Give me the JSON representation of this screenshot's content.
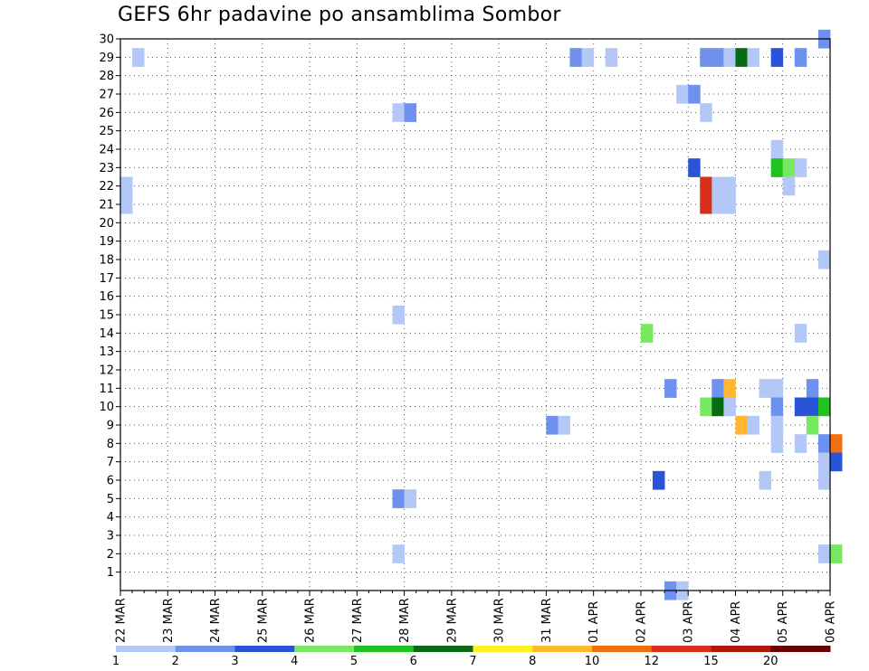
{
  "chart_data": {
    "type": "heatmap",
    "title": "GEFS 6hr padavine po ansamblima Sombor",
    "xlabel": "",
    "ylabel": "",
    "x_ticks": [
      "22 MAR",
      "23 MAR",
      "24 MAR",
      "25 MAR",
      "26 MAR",
      "27 MAR",
      "28 MAR",
      "29 MAR",
      "30 MAR",
      "31 MAR",
      "01 APR",
      "02 APR",
      "03 APR",
      "04 APR",
      "05 APR",
      "06 APR"
    ],
    "y_ticks": [
      "1",
      "2",
      "3",
      "4",
      "5",
      "6",
      "7",
      "8",
      "9",
      "10",
      "11",
      "12",
      "13",
      "14",
      "15",
      "16",
      "17",
      "18",
      "19",
      "20",
      "21",
      "22",
      "23",
      "24",
      "25",
      "26",
      "27",
      "28",
      "29",
      "30"
    ],
    "y_range": [
      0,
      30
    ],
    "x_range_days": [
      0,
      15
    ],
    "time_step": "6hr",
    "grid": "dotted",
    "colorbar": {
      "position": "bottom",
      "labels": [
        "1",
        "2",
        "3",
        "4",
        "5",
        "6",
        "7",
        "8",
        "10",
        "12",
        "15",
        "20"
      ],
      "colors": [
        "#b4c8f8",
        "#6e90ee",
        "#2a54d8",
        "#78e860",
        "#20c420",
        "#0a6a14",
        "#fff020",
        "#ffb830",
        "#f07010",
        "#d83018",
        "#b01808",
        "#6a0000"
      ]
    },
    "cells": [
      {
        "member": 29,
        "step": 1,
        "value": 1.5
      },
      {
        "member": 29,
        "step": 38,
        "value": 2.5
      },
      {
        "member": 29,
        "step": 39,
        "value": 1.5
      },
      {
        "member": 29,
        "step": 41,
        "value": 1.5
      },
      {
        "member": 29,
        "step": 49,
        "value": 2.5
      },
      {
        "member": 29,
        "step": 50,
        "value": 2.5
      },
      {
        "member": 29,
        "step": 51,
        "value": 1.5
      },
      {
        "member": 29,
        "step": 52,
        "value": 6.5
      },
      {
        "member": 29,
        "step": 53,
        "value": 1.5
      },
      {
        "member": 29,
        "step": 55,
        "value": 3.5
      },
      {
        "member": 29,
        "step": 57,
        "value": 2.5
      },
      {
        "member": 30,
        "step": 59,
        "value": 2.5
      },
      {
        "member": 27,
        "step": 47,
        "value": 1.5
      },
      {
        "member": 27,
        "step": 48,
        "value": 2.5
      },
      {
        "member": 26,
        "step": 23,
        "value": 1.5
      },
      {
        "member": 26,
        "step": 24,
        "value": 2.5
      },
      {
        "member": 26,
        "step": 49,
        "value": 1.5
      },
      {
        "member": 24,
        "step": 55,
        "value": 1.5
      },
      {
        "member": 23,
        "step": 48,
        "value": 3.5
      },
      {
        "member": 23,
        "step": 55,
        "value": 5.5
      },
      {
        "member": 23,
        "step": 56,
        "value": 4.5
      },
      {
        "member": 23,
        "step": 57,
        "value": 1.5
      },
      {
        "member": 22,
        "step": 0,
        "value": 1.5
      },
      {
        "member": 22,
        "step": 49,
        "value": 13.5
      },
      {
        "member": 22,
        "step": 50,
        "value": 1.5
      },
      {
        "member": 22,
        "step": 51,
        "value": 1.5
      },
      {
        "member": 22,
        "step": 56,
        "value": 1.5
      },
      {
        "member": 21,
        "step": 0,
        "value": 1.5
      },
      {
        "member": 21,
        "step": 49,
        "value": 13.5
      },
      {
        "member": 21,
        "step": 50,
        "value": 1.5
      },
      {
        "member": 21,
        "step": 51,
        "value": 1.5
      },
      {
        "member": 18,
        "step": 59,
        "value": 1.5
      },
      {
        "member": 15,
        "step": 23,
        "value": 1.5
      },
      {
        "member": 14,
        "step": 44,
        "value": 4.5
      },
      {
        "member": 14,
        "step": 57,
        "value": 1.5
      },
      {
        "member": 11,
        "step": 46,
        "value": 2.5
      },
      {
        "member": 11,
        "step": 50,
        "value": 2.5
      },
      {
        "member": 11,
        "step": 51,
        "value": 9
      },
      {
        "member": 11,
        "step": 54,
        "value": 1.5
      },
      {
        "member": 11,
        "step": 55,
        "value": 1.5
      },
      {
        "member": 11,
        "step": 58,
        "value": 2.5
      },
      {
        "member": 10,
        "step": 49,
        "value": 4.5
      },
      {
        "member": 10,
        "step": 50,
        "value": 6.5
      },
      {
        "member": 10,
        "step": 51,
        "value": 1.5
      },
      {
        "member": 10,
        "step": 55,
        "value": 2.5
      },
      {
        "member": 10,
        "step": 57,
        "value": 3.5
      },
      {
        "member": 10,
        "step": 58,
        "value": 3.5
      },
      {
        "member": 10,
        "step": 59,
        "value": 5.5
      },
      {
        "member": 9,
        "step": 36,
        "value": 2.5
      },
      {
        "member": 9,
        "step": 37,
        "value": 1.5
      },
      {
        "member": 9,
        "step": 52,
        "value": 9
      },
      {
        "member": 9,
        "step": 53,
        "value": 1.5
      },
      {
        "member": 9,
        "step": 55,
        "value": 1.5
      },
      {
        "member": 9,
        "step": 58,
        "value": 4.5
      },
      {
        "member": 8,
        "step": 55,
        "value": 1.5
      },
      {
        "member": 8,
        "step": 57,
        "value": 1.5
      },
      {
        "member": 8,
        "step": 59,
        "value": 2.5
      },
      {
        "member": 8,
        "step": 60,
        "value": 11
      },
      {
        "member": 7,
        "step": 59,
        "value": 1.5
      },
      {
        "member": 7,
        "step": 60,
        "value": 3.5
      },
      {
        "member": 6,
        "step": 45,
        "value": 3.5
      },
      {
        "member": 6,
        "step": 54,
        "value": 1.5
      },
      {
        "member": 6,
        "step": 59,
        "value": 1.5
      },
      {
        "member": 5,
        "step": 23,
        "value": 2.5
      },
      {
        "member": 5,
        "step": 24,
        "value": 1.5
      },
      {
        "member": 2,
        "step": 23,
        "value": 1.5
      },
      {
        "member": 2,
        "step": 59,
        "value": 1.5
      },
      {
        "member": 2,
        "step": 60,
        "value": 4.5
      },
      {
        "member": 0,
        "step": 46,
        "value": 2.5
      },
      {
        "member": 0,
        "step": 47,
        "value": 1.5
      }
    ]
  }
}
